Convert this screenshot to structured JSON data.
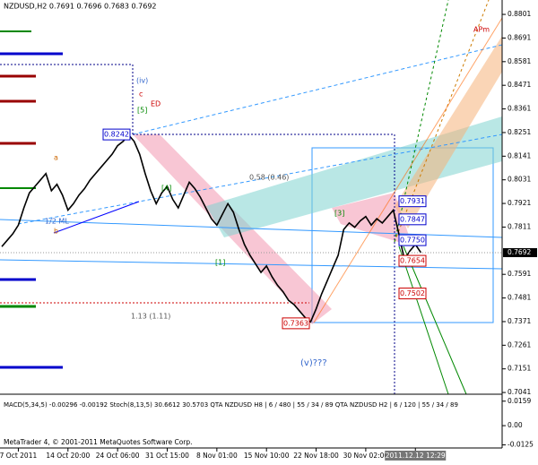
{
  "chart_data": {
    "type": "line",
    "title": "NZDUSD,H2 0.7691 0.7696 0.7683 0.7692",
    "indicator_label": "MACD(5,34,5) -0.00296 -0.00192 Stoch(8,13,5) 30.6612 30.5703 QTA NZDUSD H8 | 6 / 480 | 55 / 34 / 89 QTA NZDUSD H2 | 6 / 120 | 55 / 34 / 89",
    "footer": "MetaTrader 4, © 2001-2011 MetaQuotes Software Corp.",
    "categories": [
      null,
      null,
      null,
      "7 Oct 2011",
      null,
      null,
      null,
      null,
      null,
      null,
      null,
      null,
      "14 Oct 20:00",
      null,
      null,
      null,
      null,
      null,
      null,
      null,
      null,
      "24 Oct 06:00",
      null,
      null,
      null,
      null,
      null,
      null,
      null,
      null,
      "31 Oct 15:00",
      null,
      null,
      null,
      null,
      null,
      null,
      null,
      null,
      "8 Nov 01:00",
      null,
      null,
      null,
      null,
      null,
      null,
      null,
      null,
      "15 Nov 10:00",
      null,
      null,
      null,
      null,
      null,
      null,
      null,
      null,
      "22 Nov 18:00",
      null,
      null,
      null,
      null,
      null,
      null,
      null,
      null,
      "30 Nov 02:00",
      null,
      null,
      null,
      null,
      null,
      null,
      null,
      null,
      "2011.12.12 12:29",
      null
    ],
    "series": [
      {
        "name": "NZDUSD",
        "color": "#000000",
        "values": [
          0.772,
          0.775,
          0.778,
          0.782,
          0.79,
          0.797,
          0.8,
          0.803,
          0.806,
          0.798,
          0.801,
          0.796,
          0.789,
          0.792,
          0.796,
          0.799,
          0.803,
          0.806,
          0.809,
          0.812,
          0.815,
          0.819,
          0.821,
          0.824,
          0.821,
          0.815,
          0.806,
          0.798,
          0.792,
          0.797,
          0.8,
          0.794,
          0.79,
          0.796,
          0.802,
          0.799,
          0.795,
          0.79,
          0.785,
          0.782,
          0.787,
          0.792,
          0.788,
          0.78,
          0.773,
          0.768,
          0.764,
          0.76,
          0.763,
          0.758,
          0.754,
          0.751,
          0.747,
          0.745,
          0.742,
          0.739,
          0.737,
          0.743,
          0.75,
          0.756,
          0.762,
          0.768,
          0.78,
          0.783,
          0.781,
          0.784,
          0.786,
          0.782,
          0.785,
          0.783,
          0.786,
          0.789,
          0.778,
          0.766,
          0.77,
          0.773,
          0.7692
        ]
      }
    ],
    "ylim": [
      0.7033,
      0.8868
    ],
    "yticks": [
      0.8801,
      0.8691,
      0.8581,
      0.8471,
      0.8361,
      0.8251,
      0.8141,
      0.8031,
      0.7921,
      0.7811,
      0.7591,
      0.7481,
      0.7371,
      0.7261,
      0.7151,
      0.7041
    ],
    "current_price": 0.7692,
    "price_labels": [
      {
        "value": 0.8242,
        "label": "0.8242",
        "color": "#0000cc"
      },
      {
        "value": 0.7363,
        "label": "0.7363",
        "color": "#cc0000"
      },
      {
        "value": 0.7931,
        "label": "0.7931",
        "color": "#0000cc"
      },
      {
        "value": 0.7847,
        "label": "0.7847",
        "color": "#0000cc"
      },
      {
        "value": 0.775,
        "label": "0.7750",
        "color": "#0000cc"
      },
      {
        "value": 0.7654,
        "label": "0.7654",
        "color": "#cc0000"
      },
      {
        "value": 0.7502,
        "label": "0.7502",
        "color": "#cc0000"
      }
    ],
    "annotations": [
      "(iv)",
      "[5]",
      "ED",
      "c",
      "(v)???",
      "1/2 ML",
      "APm",
      "[3]",
      "[4]",
      "[1]",
      "a",
      "b",
      "1.13 (1.11)",
      "0.58 (0.46)"
    ],
    "y2lim": [
      -0.0145,
      0.0175
    ],
    "y2ticks": [
      0.0159,
      {
        "value": 0,
        "label": "0.00"
      },
      -0.0125
    ]
  }
}
